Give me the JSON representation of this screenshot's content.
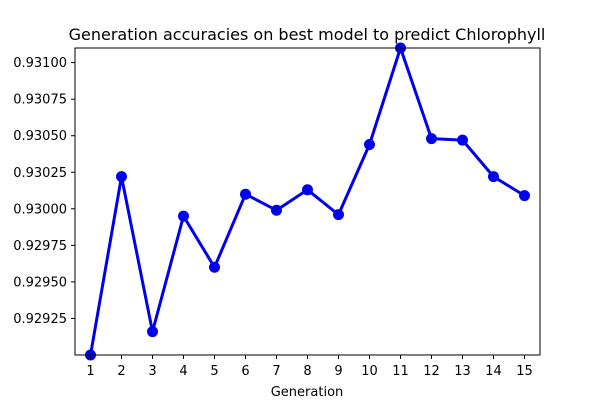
{
  "chart_data": {
    "type": "line",
    "title": "Generation accuracies on best model to predict Chlorophyll",
    "xlabel": "Generation",
    "ylabel": "",
    "x": [
      1,
      2,
      3,
      4,
      5,
      6,
      7,
      8,
      9,
      10,
      11,
      12,
      13,
      14,
      15
    ],
    "series": [
      {
        "values": [
          0.929,
          0.93022,
          0.92916,
          0.92995,
          0.9296,
          0.9301,
          0.92999,
          0.93013,
          0.92996,
          0.93044,
          0.9311,
          0.93048,
          0.93047,
          0.93022,
          0.93009
        ],
        "color": "#0000ee"
      }
    ],
    "xticks": [
      "1",
      "2",
      "3",
      "4",
      "5",
      "6",
      "7",
      "8",
      "9",
      "10",
      "11",
      "12",
      "13",
      "14",
      "15"
    ],
    "yticks": [
      "0.92925",
      "0.92950",
      "0.92975",
      "0.93000",
      "0.93025",
      "0.93050",
      "0.93075",
      "0.93100"
    ],
    "ytick_values": [
      0.92925,
      0.9295,
      0.92975,
      0.93,
      0.93025,
      0.9305,
      0.93075,
      0.931
    ],
    "xlim": [
      0.5,
      15.5
    ],
    "ylim": [
      0.929,
      0.9311
    ],
    "grid": false,
    "legend": "none"
  }
}
